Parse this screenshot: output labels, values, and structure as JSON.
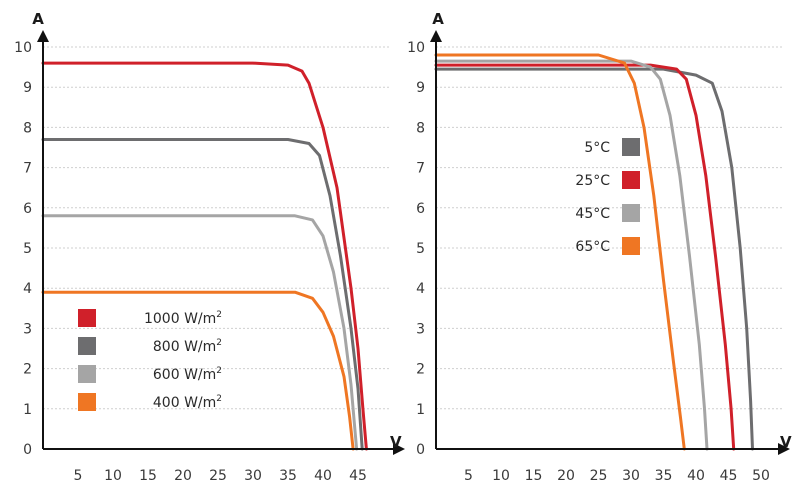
{
  "chart_data": [
    {
      "type": "line",
      "title": "",
      "xlabel": "V",
      "ylabel": "A",
      "xlim": [
        0,
        50
      ],
      "ylim": [
        0,
        10
      ],
      "x_ticks": [
        5,
        10,
        15,
        20,
        25,
        30,
        35,
        40,
        45
      ],
      "y_ticks": [
        0,
        1,
        2,
        3,
        4,
        5,
        6,
        7,
        8,
        9,
        10
      ],
      "grid": true,
      "legend_position": "bottom-left",
      "series": [
        {
          "name": "1000 W/m²",
          "legend_base": "1000 W/m",
          "legend_sup": "2",
          "color": "#d0202a",
          "points": [
            [
              0,
              9.6
            ],
            [
              30,
              9.6
            ],
            [
              35,
              9.55
            ],
            [
              37,
              9.4
            ],
            [
              38,
              9.1
            ],
            [
              40,
              8.0
            ],
            [
              42,
              6.5
            ],
            [
              44,
              4.0
            ],
            [
              45,
              2.5
            ],
            [
              45.7,
              1.0
            ],
            [
              46.2,
              0
            ]
          ]
        },
        {
          "name": "800 W/m²",
          "legend_base": "800 W/m",
          "legend_sup": "2",
          "color": "#6d6d6f",
          "points": [
            [
              0,
              7.7
            ],
            [
              35,
              7.7
            ],
            [
              38,
              7.6
            ],
            [
              39.5,
              7.3
            ],
            [
              41,
              6.3
            ],
            [
              42.5,
              4.8
            ],
            [
              44,
              3.0
            ],
            [
              45,
              1.5
            ],
            [
              45.6,
              0
            ]
          ]
        },
        {
          "name": "600 W/m²",
          "legend_base": "600 W/m",
          "legend_sup": "2",
          "color": "#a5a5a5",
          "points": [
            [
              0,
              5.8
            ],
            [
              36,
              5.8
            ],
            [
              38.5,
              5.7
            ],
            [
              40,
              5.3
            ],
            [
              41.5,
              4.4
            ],
            [
              43,
              3.0
            ],
            [
              44,
              1.6
            ],
            [
              44.8,
              0
            ]
          ]
        },
        {
          "name": "400 W/m²",
          "legend_base": "400 W/m",
          "legend_sup": "2",
          "color": "#ef7623",
          "points": [
            [
              0,
              3.9
            ],
            [
              36,
              3.9
            ],
            [
              38.5,
              3.75
            ],
            [
              40,
              3.4
            ],
            [
              41.5,
              2.8
            ],
            [
              43,
              1.8
            ],
            [
              43.8,
              0.8
            ],
            [
              44.3,
              0
            ]
          ]
        }
      ]
    },
    {
      "type": "line",
      "title": "",
      "xlabel": "V",
      "ylabel": "A",
      "xlim": [
        0,
        50
      ],
      "ylim": [
        0,
        10
      ],
      "x_ticks": [
        5,
        10,
        15,
        20,
        25,
        30,
        35,
        40,
        45,
        50
      ],
      "y_ticks": [
        0,
        1,
        2,
        3,
        4,
        5,
        6,
        7,
        8,
        9,
        10
      ],
      "grid": true,
      "legend_position": "center",
      "series": [
        {
          "name": "5°C",
          "color": "#6d6d6f",
          "points": [
            [
              0,
              9.45
            ],
            [
              35,
              9.45
            ],
            [
              40,
              9.3
            ],
            [
              42.5,
              9.1
            ],
            [
              44,
              8.4
            ],
            [
              45.5,
              7.0
            ],
            [
              46.8,
              5.0
            ],
            [
              47.8,
              3.0
            ],
            [
              48.4,
              1.2
            ],
            [
              48.7,
              0
            ]
          ]
        },
        {
          "name": "25°C",
          "color": "#d0202a",
          "points": [
            [
              0,
              9.55
            ],
            [
              33,
              9.55
            ],
            [
              37,
              9.45
            ],
            [
              38.5,
              9.2
            ],
            [
              40,
              8.3
            ],
            [
              41.5,
              6.8
            ],
            [
              43,
              4.8
            ],
            [
              44.5,
              2.6
            ],
            [
              45.4,
              1.0
            ],
            [
              45.8,
              0
            ]
          ]
        },
        {
          "name": "45°C",
          "color": "#a5a5a5",
          "points": [
            [
              0,
              9.65
            ],
            [
              30,
              9.65
            ],
            [
              33,
              9.5
            ],
            [
              34.5,
              9.2
            ],
            [
              36,
              8.3
            ],
            [
              37.5,
              6.8
            ],
            [
              39,
              4.8
            ],
            [
              40.5,
              2.6
            ],
            [
              41.3,
              1.0
            ],
            [
              41.7,
              0
            ]
          ]
        },
        {
          "name": "65°C",
          "color": "#ef7623",
          "points": [
            [
              0,
              9.8
            ],
            [
              25,
              9.8
            ],
            [
              29,
              9.6
            ],
            [
              30.5,
              9.1
            ],
            [
              32,
              8.0
            ],
            [
              33.5,
              6.3
            ],
            [
              35,
              4.2
            ],
            [
              36.5,
              2.2
            ],
            [
              37.6,
              0.8
            ],
            [
              38.2,
              0
            ]
          ]
        }
      ]
    }
  ]
}
